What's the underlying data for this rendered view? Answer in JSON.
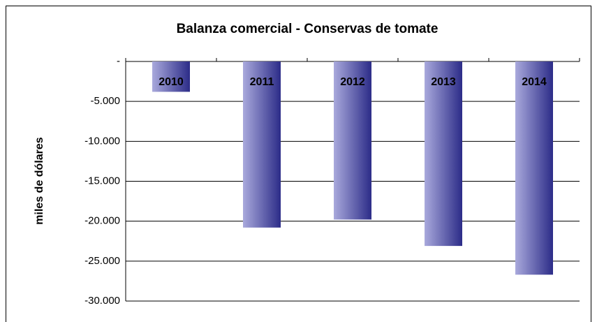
{
  "chart_data": {
    "type": "bar",
    "title": "Balanza comercial - Conservas de tomate",
    "y_label": "miles de dólares",
    "categories": [
      "2010",
      "2011",
      "2012",
      "2013",
      "2014"
    ],
    "values": [
      -3800,
      -20800,
      -19800,
      -23100,
      -26700
    ],
    "color": [
      "#a9a9dc",
      "#2c2c88"
    ],
    "ylim": [
      -30000,
      0
    ],
    "yticks": [
      {
        "value": 0,
        "label": "-"
      },
      {
        "value": -5000,
        "label": "-5.000"
      },
      {
        "value": -10000,
        "label": "-10.000"
      },
      {
        "value": -15000,
        "label": "-15.000"
      },
      {
        "value": -20000,
        "label": "-20.000"
      },
      {
        "value": -25000,
        "label": "-25.000"
      },
      {
        "value": -30000,
        "label": "-30.000"
      }
    ],
    "grid": true
  }
}
